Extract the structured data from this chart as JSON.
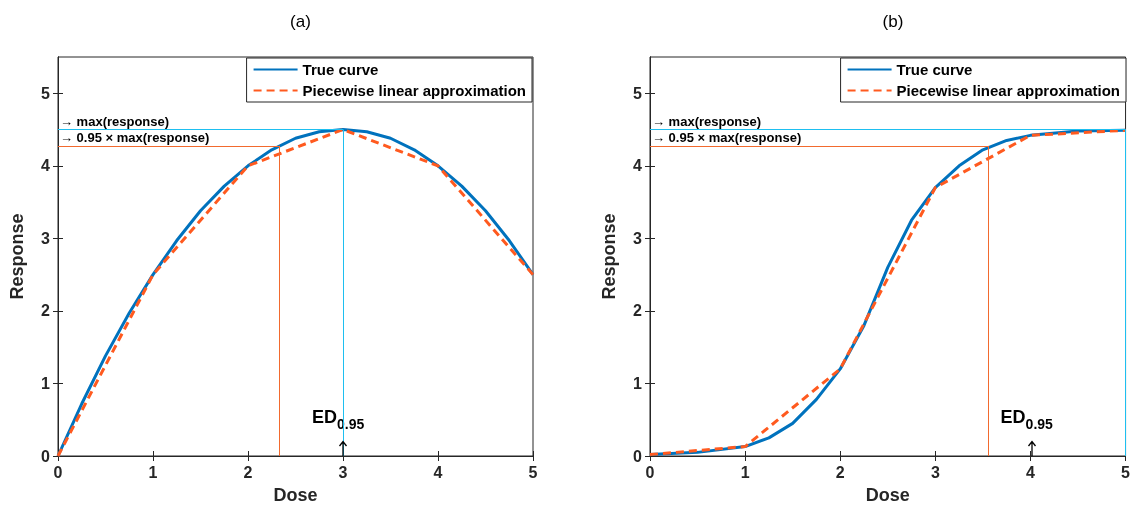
{
  "chart_data": [
    {
      "type": "line",
      "title": "(a)",
      "xlabel": "Dose",
      "ylabel": "Response",
      "xlim": [
        0,
        5
      ],
      "ylim": [
        0,
        5.5
      ],
      "xticks": [
        0,
        1,
        2,
        3,
        4,
        5
      ],
      "yticks": [
        0,
        1,
        2,
        3,
        4,
        5
      ],
      "grid": false,
      "legend": "top right",
      "marker": "none",
      "series": [
        {
          "name": "True curve",
          "color": "#0072bd",
          "line_style": "solid",
          "x": [
            0,
            0.25,
            0.5,
            0.75,
            1,
            1.25,
            1.5,
            1.75,
            2,
            2.25,
            2.5,
            2.75,
            3,
            3.25,
            3.5,
            3.75,
            4,
            4.25,
            4.5,
            4.75,
            5
          ],
          "values": [
            0,
            0.72,
            1.38,
            1.97,
            2.5,
            2.97,
            3.38,
            3.72,
            4,
            4.22,
            4.38,
            4.47,
            4.5,
            4.47,
            4.38,
            4.22,
            4,
            3.72,
            3.38,
            2.97,
            2.5
          ]
        },
        {
          "name": "Piecewise linear approximation",
          "color": "#ff5a1f",
          "line_style": "dashed",
          "x": [
            0,
            1,
            2,
            3,
            4,
            5
          ],
          "values": [
            0,
            2.5,
            4,
            4.5,
            4,
            2.5
          ]
        }
      ],
      "ref_lines": [
        {
          "axis": "y",
          "value": 4.5,
          "label": "→ max(response)",
          "color": "#1ebff0"
        },
        {
          "axis": "y",
          "value": 4.275,
          "label": "→ 0.95 × max(response)",
          "color": "#f26a2e"
        },
        {
          "axis": "x",
          "value": 3,
          "color": "#1ebff0"
        },
        {
          "axis": "x",
          "value": 2.33,
          "color": "#f26a2e"
        }
      ],
      "annotations": [
        {
          "text": "ED$_{0.95}$",
          "x": 3,
          "y": 0
        }
      ]
    },
    {
      "type": "line",
      "title": "(b)",
      "xlabel": "Dose",
      "ylabel": "Response",
      "xlim": [
        0,
        5
      ],
      "ylim": [
        0,
        5.5
      ],
      "xticks": [
        0,
        1,
        2,
        3,
        4,
        5
      ],
      "yticks": [
        0,
        1,
        2,
        3,
        4,
        5
      ],
      "grid": false,
      "legend": "top right",
      "marker": "none",
      "series": [
        {
          "name": "True curve",
          "color": "#0072bd",
          "line_style": "solid",
          "x": [
            0,
            0.5,
            1,
            1.25,
            1.5,
            1.75,
            2,
            2.25,
            2.5,
            2.75,
            3,
            3.25,
            3.5,
            3.75,
            4,
            4.5,
            5
          ],
          "values": [
            0.02,
            0.05,
            0.13,
            0.25,
            0.45,
            0.78,
            1.2,
            1.8,
            2.6,
            3.25,
            3.7,
            4.0,
            4.22,
            4.35,
            4.42,
            4.48,
            4.49
          ]
        },
        {
          "name": "Piecewise linear approximation",
          "color": "#ff5a1f",
          "line_style": "dashed",
          "x": [
            0,
            1,
            2,
            3,
            4,
            5
          ],
          "values": [
            0.02,
            0.13,
            1.2,
            3.7,
            4.42,
            4.49
          ]
        }
      ],
      "ref_lines": [
        {
          "axis": "y",
          "value": 4.5,
          "label": "→ max(response)",
          "color": "#1ebff0"
        },
        {
          "axis": "y",
          "value": 4.275,
          "label": "→ 0.95 × max(response)",
          "color": "#f26a2e"
        },
        {
          "axis": "x",
          "value": 5,
          "color": "#1ebff0"
        },
        {
          "axis": "x",
          "value": 3.56,
          "color": "#f26a2e"
        }
      ],
      "annotations": [
        "ED$_{0.95}$"
      ]
    }
  ]
}
